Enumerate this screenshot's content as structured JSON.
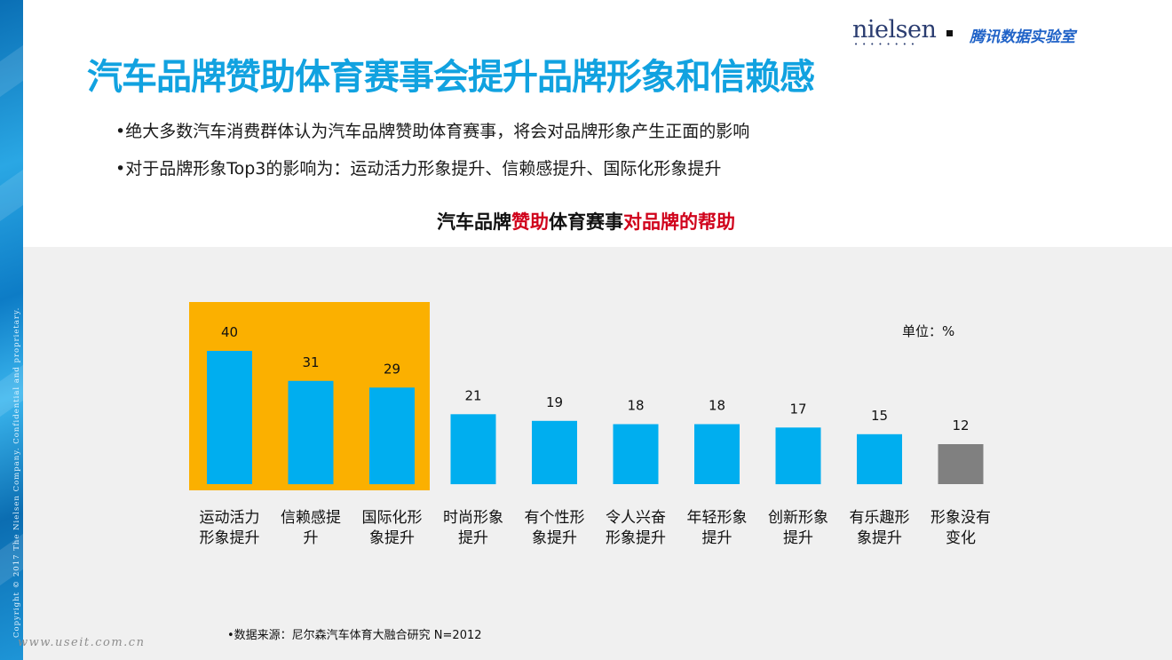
{
  "header": {
    "logo_nielsen": "nielsen",
    "logo_dots": "••••••••",
    "logo_tencent": "腾讯数据实验室"
  },
  "sidebar": {
    "copyright": "Copyright © 2017 The Nielsen Company. Confidential and proprietary."
  },
  "title": "汽车品牌赞助体育赛事会提升品牌形象和信赖感",
  "bullets": [
    "•绝大多数汽车消费群体认为汽车品牌赞助体育赛事，将会对品牌形象产生正面的影响",
    "•对于品牌形象Top3的影响为：运动活力形象提升、信赖感提升、国际化形象提升"
  ],
  "chart_title_parts": {
    "part1": "汽车品牌",
    "part2": "赞助",
    "part3": "体育赛事",
    "part4": "对品牌的帮助"
  },
  "chart_data": {
    "type": "bar",
    "unit_label": "单位：%",
    "categories": [
      [
        "运动活力",
        "形象提升"
      ],
      [
        "信赖感提",
        "升"
      ],
      [
        "国际化形",
        "象提升"
      ],
      [
        "时尚形象",
        "提升"
      ],
      [
        "有个性形",
        "象提升"
      ],
      [
        "令人兴奋",
        "形象提升"
      ],
      [
        "年轻形象",
        "提升"
      ],
      [
        "创新形象",
        "提升"
      ],
      [
        "有乐趣形",
        "象提升"
      ],
      [
        "形象没有",
        "变化"
      ]
    ],
    "values": [
      40,
      31,
      29,
      21,
      19,
      18,
      18,
      17,
      15,
      12
    ],
    "bar_colors": [
      "#00aeef",
      "#00aeef",
      "#00aeef",
      "#00aeef",
      "#00aeef",
      "#00aeef",
      "#00aeef",
      "#00aeef",
      "#00aeef",
      "#808080"
    ],
    "highlight_color": "#fbb000",
    "highlighted_top": 3,
    "ylim": [
      0,
      40
    ],
    "xlabel": "",
    "ylabel": "",
    "grid": false
  },
  "source": "•数据来源：尼尔森汽车体育大融合研究 N=2012",
  "watermark": "www.useit.com.cn"
}
